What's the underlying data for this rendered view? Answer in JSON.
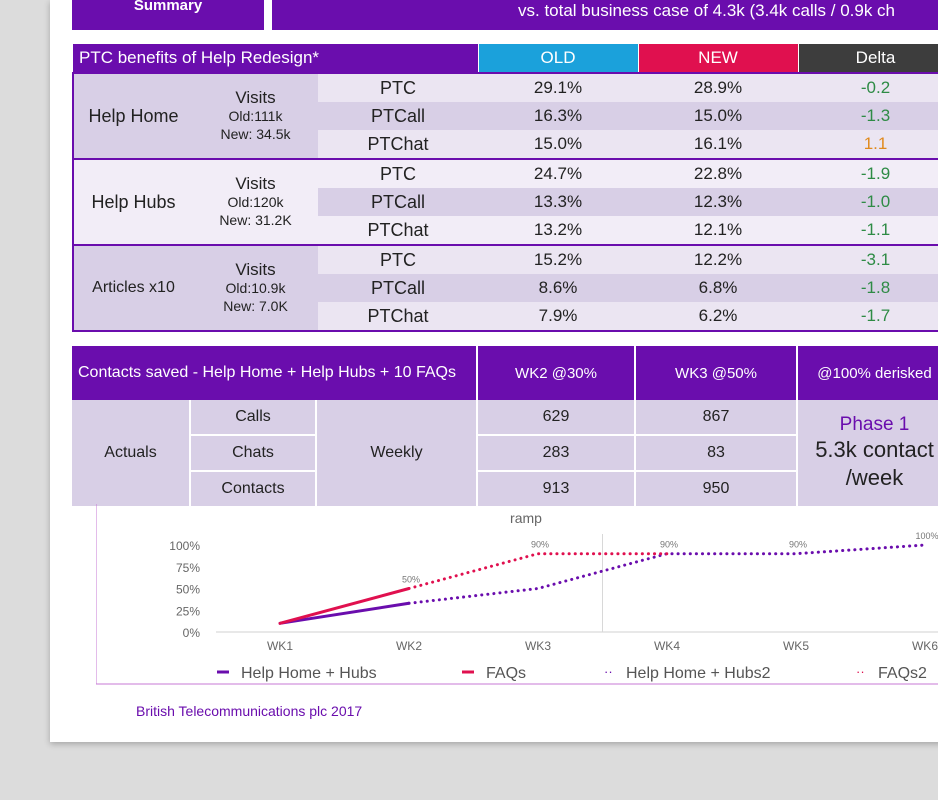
{
  "header": {
    "summary_label": "Summary",
    "business_case_text": "vs. total business case of 4.3k (3.4k calls / 0.9k ch"
  },
  "ptc_table": {
    "title": "PTC benefits of Help Redesign*",
    "col_old": "OLD",
    "col_new": "NEW",
    "col_delta": "Delta",
    "groups": [
      {
        "name": "Help Home",
        "visits_label": "Visits",
        "visits_old": "Old:111k",
        "visits_new": "New: 34.5k",
        "rows": [
          {
            "metric": "PTC",
            "old": "29.1%",
            "new": "28.9%",
            "delta": "-0.2"
          },
          {
            "metric": "PTCall",
            "old": "16.3%",
            "new": "15.0%",
            "delta": "-1.3"
          },
          {
            "metric": "PTChat",
            "old": "15.0%",
            "new": "16.1%",
            "delta": "1.1"
          }
        ]
      },
      {
        "name": "Help Hubs",
        "visits_label": "Visits",
        "visits_old": "Old:120k",
        "visits_new": "New: 31.2K",
        "rows": [
          {
            "metric": "PTC",
            "old": "24.7%",
            "new": "22.8%",
            "delta": "-1.9"
          },
          {
            "metric": "PTCall",
            "old": "13.3%",
            "new": "12.3%",
            "delta": "-1.0"
          },
          {
            "metric": "PTChat",
            "old": "13.2%",
            "new": "12.1%",
            "delta": "-1.1"
          }
        ]
      },
      {
        "name": "Articles x10",
        "visits_label": "Visits",
        "visits_old": "Old:10.9k",
        "visits_new": "New: 7.0K",
        "rows": [
          {
            "metric": "PTC",
            "old": "15.2%",
            "new": "12.2%",
            "delta": "-3.1"
          },
          {
            "metric": "PTCall",
            "old": "8.6%",
            "new": "6.8%",
            "delta": "-1.8"
          },
          {
            "metric": "PTChat",
            "old": "7.9%",
            "new": "6.2%",
            "delta": "-1.7"
          }
        ]
      }
    ]
  },
  "contacts_table": {
    "title": "Contacts saved - Help Home + Help Hubs + 10 FAQs",
    "col_wk2": "WK2 @30%",
    "col_wk3": "WK3 @50%",
    "col_derisked": "@100% derisked",
    "actuals_label": "Actuals",
    "weekly_label": "Weekly",
    "rows": [
      {
        "type": "Calls",
        "wk2": "629",
        "wk3": "867"
      },
      {
        "type": "Chats",
        "wk2": "283",
        "wk3": "83"
      },
      {
        "type": "Contacts",
        "wk2": "913",
        "wk3": "950"
      }
    ],
    "phase_label": "Phase 1",
    "phase_value_line1": "5.3k contact",
    "phase_value_line2": "/week"
  },
  "chart_data": {
    "type": "line",
    "title": "ramp",
    "categories": [
      "WK1",
      "WK2",
      "WK3",
      "WK4",
      "WK5",
      "WK6"
    ],
    "y_ticks": [
      "100%",
      "75%",
      "50%",
      "25%",
      "0%"
    ],
    "ylim": [
      0,
      100
    ],
    "series": [
      {
        "name": "Help Home + Hubs",
        "style": "solid",
        "color": "#6a0dad",
        "x": [
          0,
          1
        ],
        "values": [
          10,
          33
        ]
      },
      {
        "name": "FAQs",
        "style": "solid",
        "color": "#e0104f",
        "x": [
          0,
          1
        ],
        "values": [
          10,
          50
        ]
      },
      {
        "name": "Help Home + Hubs2",
        "style": "dotted",
        "color": "#6a0dad",
        "x": [
          1,
          2,
          3,
          4,
          5
        ],
        "values": [
          33,
          50,
          90,
          90,
          100
        ]
      },
      {
        "name": "FAQs2",
        "style": "dotted",
        "color": "#e0104f",
        "x": [
          1,
          2,
          3
        ],
        "values": [
          50,
          90,
          90
        ]
      }
    ],
    "point_labels": [
      {
        "x": 1,
        "value": 50,
        "text": "50%"
      },
      {
        "x": 2,
        "value": 90,
        "text": "90%"
      },
      {
        "x": 3,
        "value": 90,
        "text": "90%"
      },
      {
        "x": 4,
        "value": 90,
        "text": "90%"
      },
      {
        "x": 5,
        "value": 100,
        "text": "100%"
      }
    ]
  },
  "footer": {
    "text": "British Telecommunications plc 2017"
  }
}
